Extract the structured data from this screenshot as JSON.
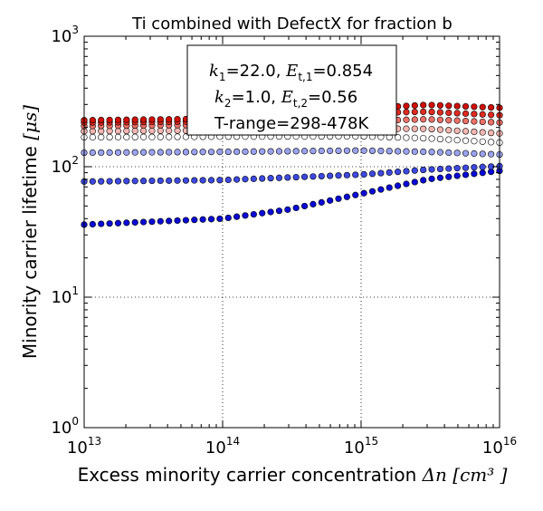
{
  "chart_data": {
    "type": "scatter",
    "title": "Ti combined with DefectX for fraction b",
    "xlabel": "Excess minority carrier concentration",
    "xlabel_math": "Δn [cm³ ]",
    "ylabel": "Minority carrier lifetime",
    "ylabel_math": "[μs]",
    "x_scale": "log",
    "y_scale": "log",
    "xlim": [
      10000000000000.0,
      1e+16
    ],
    "ylim": [
      1,
      1000
    ],
    "grid": true,
    "x_ticks": [
      {
        "base": "10",
        "exp": "13",
        "value": 10000000000000.0
      },
      {
        "base": "10",
        "exp": "14",
        "value": 100000000000000.0
      },
      {
        "base": "10",
        "exp": "15",
        "value": 1000000000000000.0
      },
      {
        "base": "10",
        "exp": "16",
        "value": 1e+16
      }
    ],
    "y_ticks": [
      {
        "base": "10",
        "exp": "0",
        "value": 1
      },
      {
        "base": "10",
        "exp": "1",
        "value": 10
      },
      {
        "base": "10",
        "exp": "2",
        "value": 100
      },
      {
        "base": "10",
        "exp": "3",
        "value": 1000
      }
    ],
    "legend": {
      "placement": "top-center",
      "lines": [
        {
          "sym": "k",
          "sub": "1",
          "text": "=22.0, "
        },
        {
          "sym": "E",
          "sub": "t,1",
          "text": "=0.854"
        },
        {
          "sym": "k",
          "sub": "2",
          "text": "=1.0, "
        },
        {
          "sym": "E",
          "sub": "t,2",
          "text": "=0.56"
        },
        {
          "text": "T-range=298-478K"
        }
      ]
    },
    "series": [
      {
        "color": "#0a0ad6",
        "points": [
          [
            10000000000000.0,
            36
          ],
          [
            100000000000000.0,
            40
          ],
          [
            300000000000000.0,
            47
          ],
          [
            1000000000000000.0,
            62
          ],
          [
            3000000000000000.0,
            80
          ],
          [
            1e+16,
            93
          ]
        ]
      },
      {
        "color": "#3c48e0",
        "points": [
          [
            10000000000000.0,
            77
          ],
          [
            100000000000000.0,
            79
          ],
          [
            1000000000000000.0,
            87
          ],
          [
            3000000000000000.0,
            95
          ],
          [
            1e+16,
            101
          ]
        ]
      },
      {
        "color": "#9aa2ee",
        "points": [
          [
            10000000000000.0,
            128
          ],
          [
            100000000000000.0,
            130
          ],
          [
            1000000000000000.0,
            133
          ],
          [
            3000000000000000.0,
            130
          ],
          [
            1e+16,
            124
          ]
        ]
      },
      {
        "color": "#ffffff",
        "points": [
          [
            10000000000000.0,
            168
          ],
          [
            100000000000000.0,
            170
          ],
          [
            1000000000000000.0,
            171
          ],
          [
            3000000000000000.0,
            165
          ],
          [
            1e+16,
            153
          ]
        ]
      },
      {
        "color": "#f4b6b0",
        "points": [
          [
            10000000000000.0,
            187
          ],
          [
            100000000000000.0,
            190
          ],
          [
            1000000000000000.0,
            196
          ],
          [
            3000000000000000.0,
            195
          ],
          [
            1e+16,
            180
          ]
        ]
      },
      {
        "color": "#ec7068",
        "points": [
          [
            10000000000000.0,
            205
          ],
          [
            100000000000000.0,
            210
          ],
          [
            1000000000000000.0,
            224
          ],
          [
            3000000000000000.0,
            231
          ],
          [
            1e+16,
            218
          ]
        ]
      },
      {
        "color": "#df2a20",
        "points": [
          [
            10000000000000.0,
            218
          ],
          [
            100000000000000.0,
            223
          ],
          [
            1000000000000000.0,
            258
          ],
          [
            3000000000000000.0,
            264
          ],
          [
            1e+16,
            248
          ]
        ]
      },
      {
        "color": "#d01008",
        "points": [
          [
            10000000000000.0,
            227
          ],
          [
            100000000000000.0,
            233
          ],
          [
            1000000000000000.0,
            280
          ],
          [
            3000000000000000.0,
            298
          ],
          [
            1e+16,
            283
          ]
        ]
      }
    ]
  }
}
